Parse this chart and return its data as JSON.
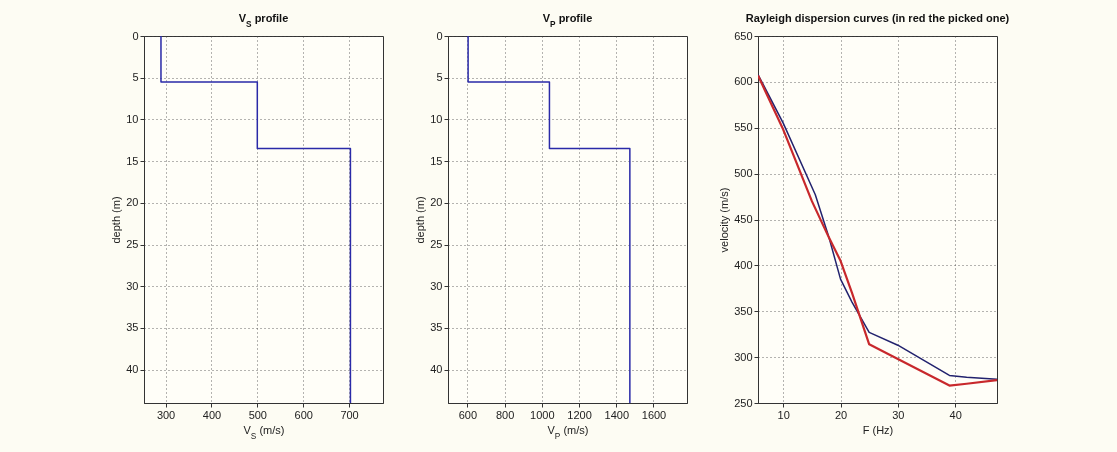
{
  "chart_data": [
    {
      "type": "line",
      "title": "V$_{S}$ profile",
      "xlabel": "V$_{S}$ (m/s)",
      "ylabel": "depth (m)",
      "xlim": [
        253,
        774
      ],
      "xticks": [
        300,
        400,
        500,
        600,
        700
      ],
      "ylim": [
        44,
        0
      ],
      "yticks": [
        0,
        5,
        10,
        15,
        20,
        25,
        30,
        35,
        40
      ],
      "grid": true,
      "line_style": "solid",
      "series": [
        {
          "color": "#2a2aa8",
          "x": [
            290,
            290,
            500,
            500,
            703,
            703
          ],
          "values": [
            0,
            5.5,
            5.5,
            13.5,
            13.5,
            44
          ]
        }
      ]
    },
    {
      "type": "line",
      "title": "V$_{P}$ profile",
      "xlabel": "V$_{P}$ (m/s)",
      "ylabel": "depth (m)",
      "xlim": [
        496,
        1780
      ],
      "xticks": [
        600,
        800,
        1000,
        1200,
        1400,
        1600
      ],
      "ylim": [
        44,
        0
      ],
      "yticks": [
        0,
        5,
        10,
        15,
        20,
        25,
        30,
        35,
        40
      ],
      "grid": true,
      "line_style": "solid",
      "series": [
        {
          "color": "#2a2aa8",
          "x": [
            604,
            604,
            1041,
            1041,
            1473,
            1473
          ],
          "values": [
            0,
            5.5,
            5.5,
            13.5,
            13.5,
            44
          ]
        }
      ]
    },
    {
      "type": "line",
      "title": "Rayleigh dispersion curves (in red the picked one)",
      "xlabel": "F (Hz)",
      "ylabel": "velocity (m/s)",
      "xlim": [
        5.6,
        47.3
      ],
      "xticks": [
        10,
        20,
        30,
        40
      ],
      "ylim": [
        250,
        650
      ],
      "yticks": [
        250,
        300,
        350,
        400,
        450,
        500,
        550,
        600,
        650
      ],
      "grid": true,
      "line_style": "solid",
      "series": [
        {
          "color": "#22226e",
          "x": [
            5.6,
            10,
            15.6,
            18,
            20,
            22,
            25,
            30,
            39,
            42,
            47.3
          ],
          "values": [
            608,
            555,
            477,
            430,
            385,
            360,
            327,
            313,
            280,
            278,
            276
          ]
        },
        {
          "color": "#c8282c",
          "x": [
            5.6,
            10,
            15,
            18,
            20,
            22,
            25,
            30,
            39,
            42,
            47.3
          ],
          "values": [
            607,
            548,
            470,
            430,
            405,
            370,
            314,
            298,
            269,
            271,
            275
          ]
        }
      ]
    }
  ]
}
